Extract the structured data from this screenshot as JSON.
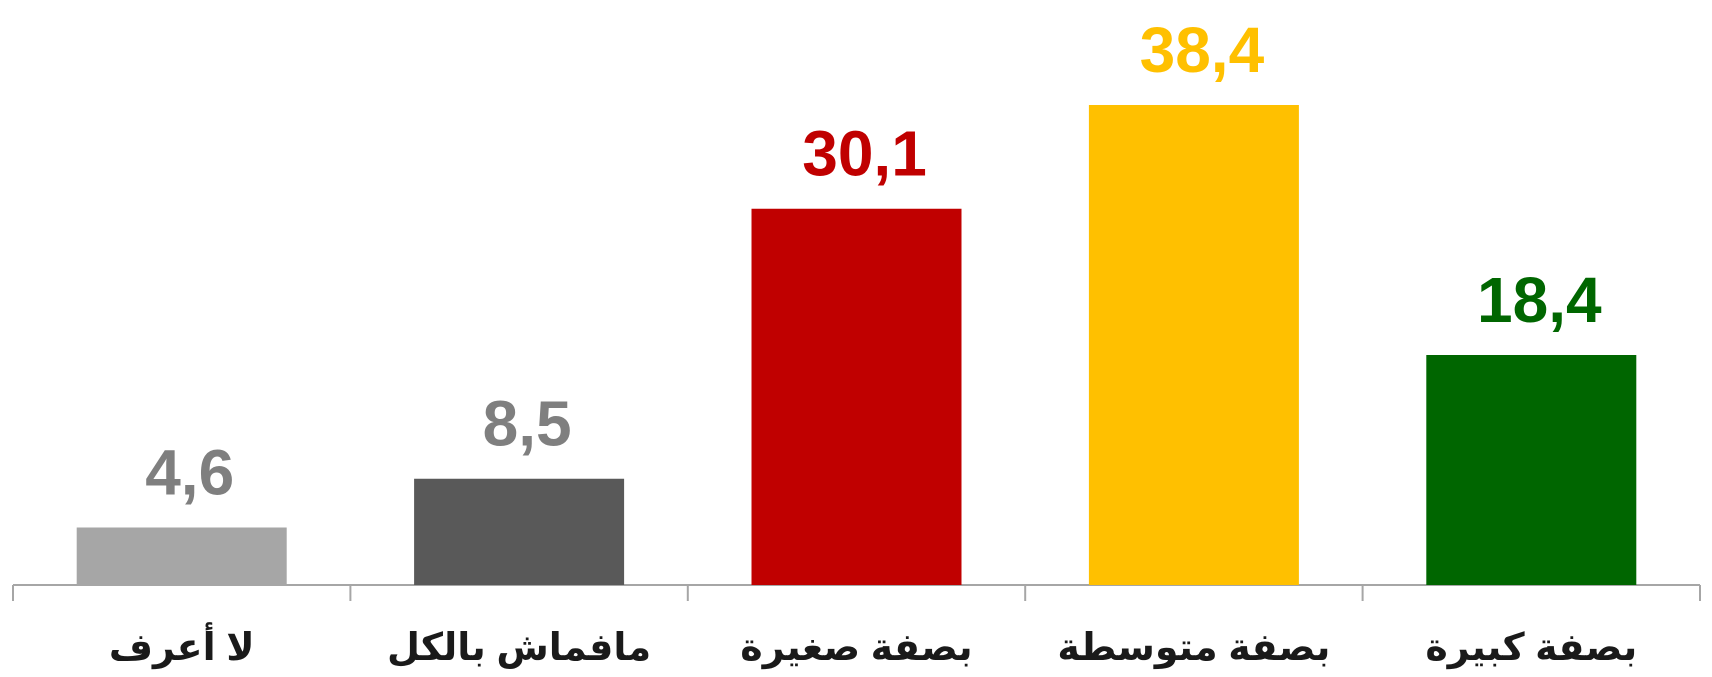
{
  "chart_data": {
    "type": "bar",
    "categories": [
      "لا أعرف",
      "مافماش بالكل",
      "بصفة صغيرة",
      "بصفة  متوسطة",
      "بصفة كبيرة"
    ],
    "values": [
      4.6,
      8.5,
      30.1,
      38.4,
      18.4
    ],
    "value_labels": [
      "4,6",
      "8,5",
      "30,1",
      "38,4",
      "18,4"
    ],
    "colors": [
      "#a6a6a6",
      "#595959",
      "#c00000",
      "#ffc000",
      "#006600"
    ],
    "label_colors": [
      "#7f7f7f",
      "#7f7f7f",
      "#c00000",
      "#ffc000",
      "#006600"
    ]
  }
}
